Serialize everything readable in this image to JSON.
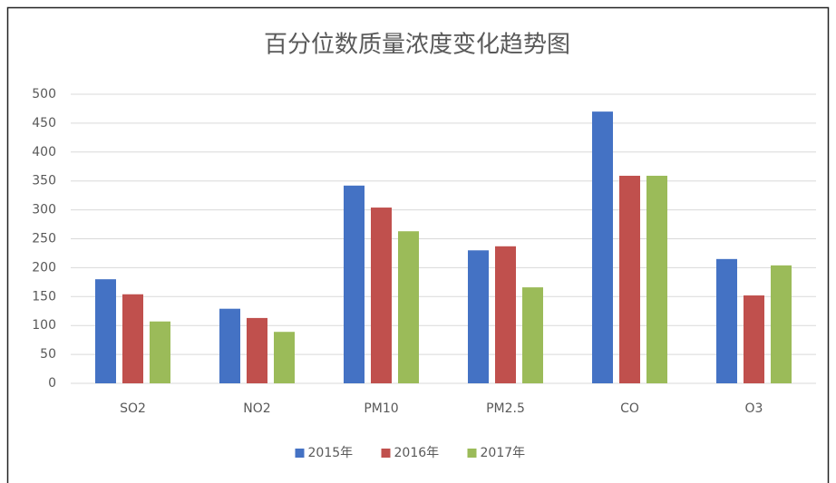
{
  "chart_data": {
    "type": "bar",
    "title": "百分位数质量浓度变化趋势图",
    "categories": [
      "SO2",
      "NO2",
      "PM10",
      "PM2.5",
      "CO",
      "O3"
    ],
    "series": [
      {
        "name": "2015年",
        "color": "#4472c4",
        "values": [
          180,
          129,
          342,
          230,
          470,
          215
        ]
      },
      {
        "name": "2016年",
        "color": "#c0504d",
        "values": [
          154,
          113,
          304,
          237,
          359,
          152
        ]
      },
      {
        "name": "2017年",
        "color": "#9bbb59",
        "values": [
          107,
          89,
          263,
          166,
          359,
          204
        ]
      }
    ],
    "ylim": [
      0,
      500
    ],
    "yticks": [
      0,
      50,
      100,
      150,
      200,
      250,
      300,
      350,
      400,
      450,
      500
    ],
    "grid": true,
    "legend": "bottom"
  }
}
